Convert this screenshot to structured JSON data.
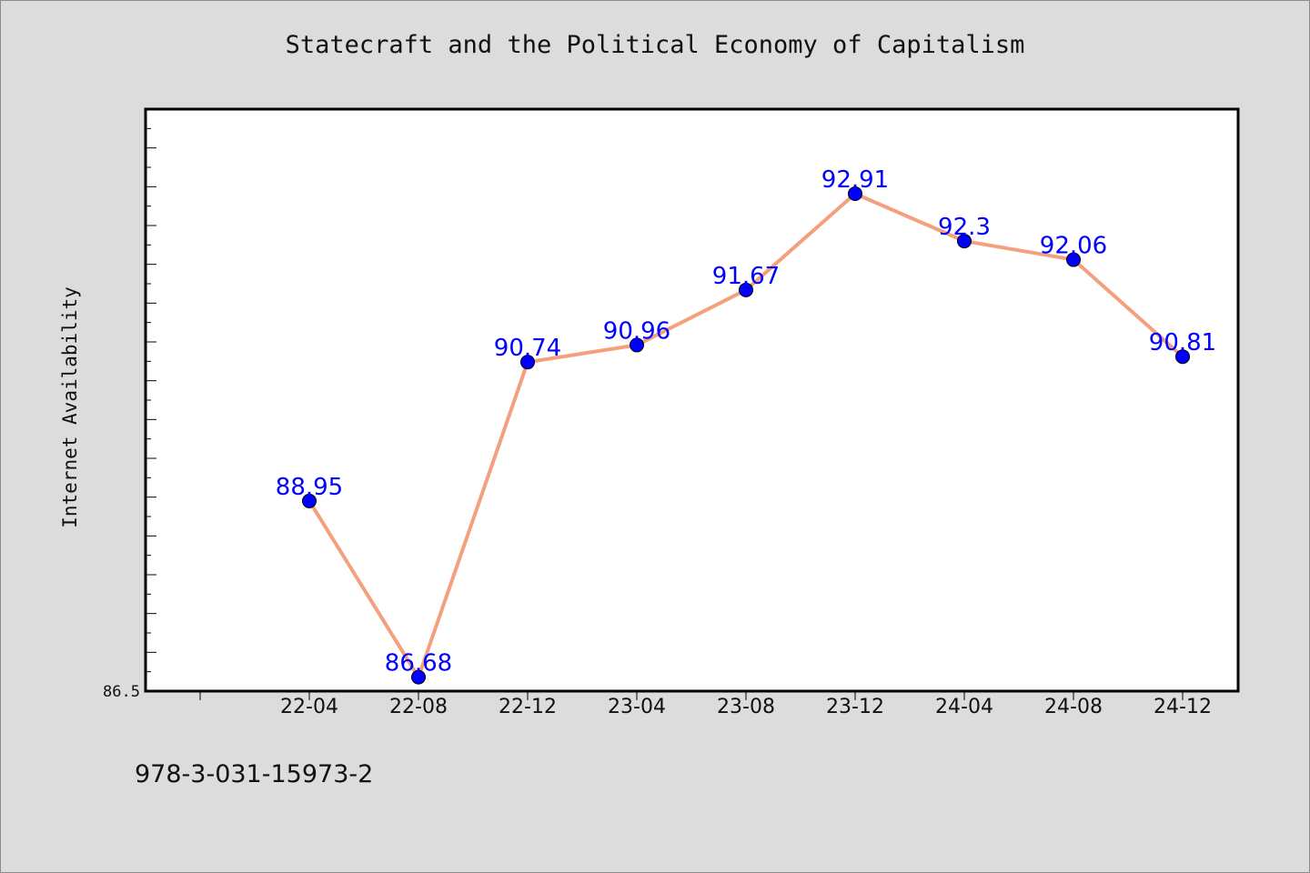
{
  "title": "Statecraft and the Political Economy of Capitalism",
  "footer_id": "978-3-031-15973-2",
  "colors": {
    "background": "#dcdcdc",
    "plot_background": "#ffffff",
    "line": "#f4a07e",
    "marker": "#0000ff",
    "data_label": "#0000ff"
  },
  "chart_data": {
    "type": "line",
    "title": "Statecraft and the Political Economy of Capitalism",
    "xlabel": "",
    "ylabel": "Internet Availability",
    "categories": [
      "22-04",
      "22-08",
      "22-12",
      "23-04",
      "23-08",
      "23-12",
      "24-04",
      "24-08",
      "24-12"
    ],
    "series": [
      {
        "values": [
          88.95,
          86.68,
          90.74,
          90.96,
          91.67,
          92.91,
          92.3,
          92.06,
          90.81
        ]
      }
    ],
    "data_labels": [
      "88.95",
      "86.68",
      "90.74",
      "90.96",
      "91.67",
      "92.91",
      "92.3",
      "92.06",
      "90.81"
    ],
    "ylim": [
      86.5,
      94.0
    ],
    "y_tick_labels": [
      "86.5"
    ],
    "grid": false,
    "legend": "none"
  }
}
